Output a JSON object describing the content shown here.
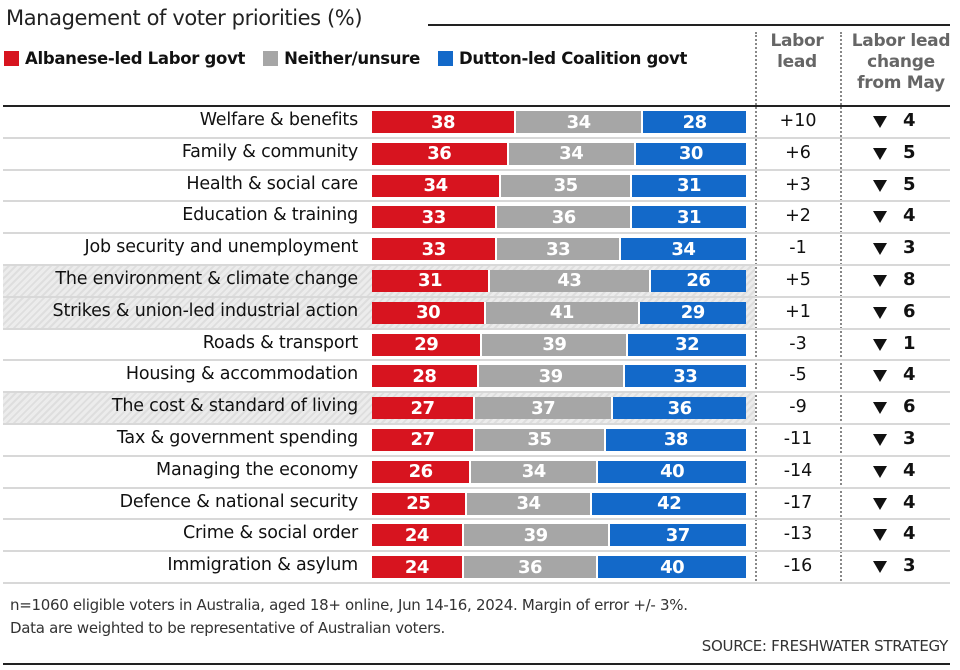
{
  "colors": {
    "labor": "#d7141f",
    "neither": "#a6a6a6",
    "coalition": "#1369c9"
  },
  "headers": {
    "labor_lead": [
      "Labor",
      "lead"
    ],
    "labor_lead_change": [
      "Labor lead",
      "change",
      "from May"
    ]
  },
  "footnote": {
    "line1": "n=1060 eligible voters in Australia, aged 18+ online, Jun 14-16, 2024. Margin of error +/- 3%.",
    "line2": "Data are weighted to be representative of Australian voters.",
    "source": "SOURCE: FRESHWATER STRATEGY"
  },
  "chart_data": {
    "type": "bar",
    "orientation": "horizontal-stacked-100",
    "title": "Management of voter priorities (%)",
    "legend": [
      "Albanese-led Labor govt",
      "Neither/unsure",
      "Dutton-led Coalition govt"
    ],
    "legend_position": "top-left",
    "categories": [
      "Welfare & benefits",
      "Family & community",
      "Health & social care",
      "Education & training",
      "Job security and unemployment",
      "The environment & climate change",
      "Strikes & union-led industrial action",
      "Roads & transport",
      "Housing & accommodation",
      "The cost & standard of living",
      "Tax & government spending",
      "Managing the economy",
      "Defence & national security",
      "Crime & social order",
      "Immigration & asylum"
    ],
    "highlighted": [
      false,
      false,
      false,
      false,
      false,
      true,
      true,
      false,
      false,
      true,
      false,
      false,
      false,
      false,
      false
    ],
    "series": [
      {
        "name": "Albanese-led Labor govt",
        "values": [
          38,
          36,
          34,
          33,
          33,
          31,
          30,
          29,
          28,
          27,
          27,
          26,
          25,
          24,
          24
        ]
      },
      {
        "name": "Neither/unsure",
        "values": [
          34,
          34,
          35,
          36,
          33,
          43,
          41,
          39,
          39,
          37,
          35,
          34,
          34,
          39,
          36
        ]
      },
      {
        "name": "Dutton-led Coalition govt",
        "values": [
          28,
          30,
          31,
          31,
          34,
          26,
          29,
          32,
          33,
          36,
          38,
          40,
          42,
          37,
          40
        ]
      }
    ],
    "labor_lead": [
      "+10",
      "+6",
      "+3",
      "+2",
      "-1",
      "+5",
      "+1",
      "-3",
      "-5",
      "-9",
      "-11",
      "-14",
      "-17",
      "-13",
      "-16"
    ],
    "labor_lead_change_from_may": [
      {
        "direction": "down",
        "value": 4
      },
      {
        "direction": "down",
        "value": 5
      },
      {
        "direction": "down",
        "value": 5
      },
      {
        "direction": "down",
        "value": 4
      },
      {
        "direction": "down",
        "value": 3
      },
      {
        "direction": "down",
        "value": 8
      },
      {
        "direction": "down",
        "value": 6
      },
      {
        "direction": "down",
        "value": 1
      },
      {
        "direction": "down",
        "value": 4
      },
      {
        "direction": "down",
        "value": 6
      },
      {
        "direction": "down",
        "value": 3
      },
      {
        "direction": "down",
        "value": 4
      },
      {
        "direction": "down",
        "value": 4
      },
      {
        "direction": "down",
        "value": 4
      },
      {
        "direction": "down",
        "value": 3
      }
    ],
    "xlabel": "",
    "ylabel": "",
    "xlim": [
      0,
      100
    ],
    "grid": false
  }
}
